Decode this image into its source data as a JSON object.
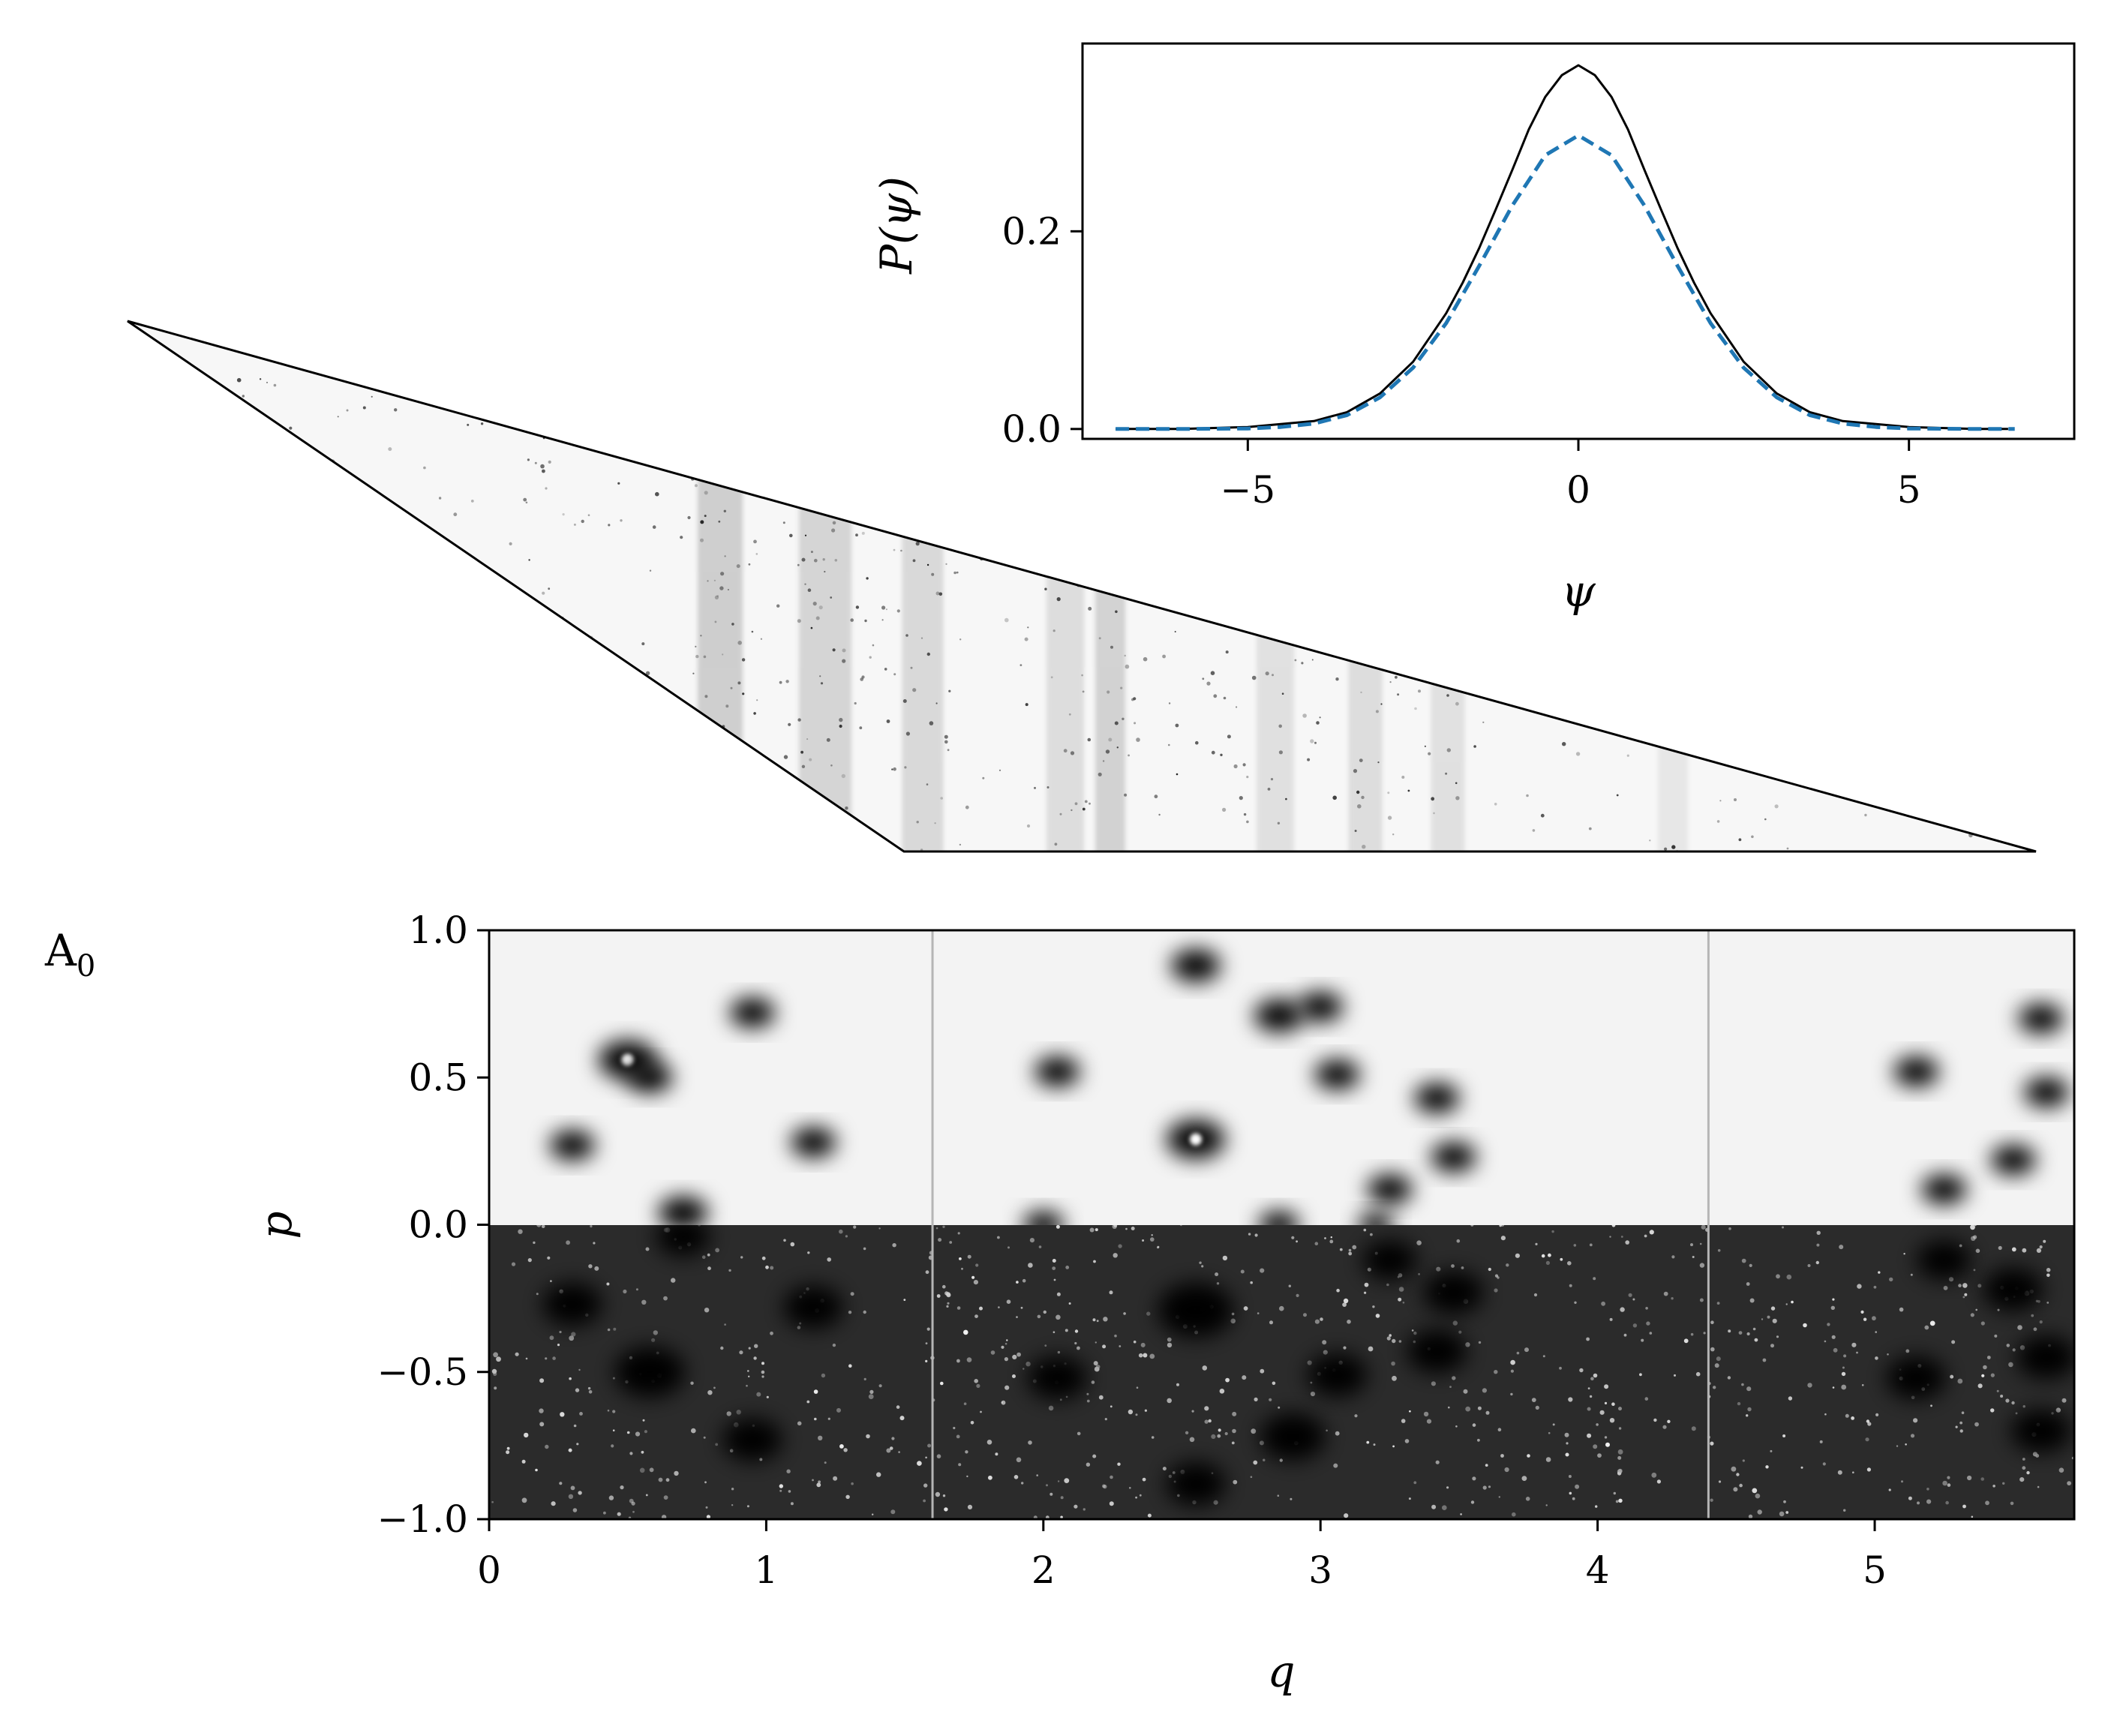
{
  "panel_label": {
    "main": "A",
    "sub": "0"
  },
  "chart_data": [
    {
      "type": "line",
      "xlabel": "ψ",
      "ylabel": "P(ψ)",
      "xlim": [
        -7.5,
        7.5
      ],
      "ylim": [
        -0.01,
        0.39
      ],
      "xticks": [
        -5,
        0,
        5
      ],
      "xtick_labels": [
        "−5",
        "0",
        "5"
      ],
      "yticks": [
        0.0,
        0.2
      ],
      "ytick_labels": [
        "0.0",
        "0.2"
      ],
      "grid": false,
      "series": [
        {
          "style": "solid",
          "color": "#000000",
          "x": [
            -7,
            -6,
            -5,
            -4,
            -3.5,
            -3,
            -2.5,
            -2,
            -1.75,
            -1.5,
            -1.25,
            -1,
            -0.75,
            -0.5,
            -0.25,
            0,
            0.25,
            0.5,
            0.75,
            1,
            1.25,
            1.5,
            1.75,
            2,
            2.5,
            3,
            3.5,
            4,
            5,
            6,
            6.5
          ],
          "y": [
            0.0,
            0.0,
            0.002,
            0.008,
            0.017,
            0.036,
            0.068,
            0.117,
            0.148,
            0.183,
            0.222,
            0.262,
            0.303,
            0.336,
            0.358,
            0.368,
            0.358,
            0.336,
            0.303,
            0.262,
            0.222,
            0.183,
            0.148,
            0.117,
            0.068,
            0.036,
            0.017,
            0.008,
            0.002,
            0.0,
            0.0
          ]
        },
        {
          "style": "dashed",
          "color": "#1f77b4",
          "x": [
            -7,
            -6,
            -5,
            -4.5,
            -4,
            -3.5,
            -3,
            -2.5,
            -2,
            -1.5,
            -1,
            -0.5,
            0,
            0.5,
            1,
            1.5,
            2,
            2.5,
            3,
            3.5,
            4,
            4.5,
            5,
            6,
            6.6
          ],
          "y": [
            0.0,
            0.0,
            0.0005,
            0.002,
            0.0055,
            0.014,
            0.032,
            0.062,
            0.107,
            0.165,
            0.226,
            0.277,
            0.297,
            0.277,
            0.226,
            0.165,
            0.107,
            0.062,
            0.032,
            0.014,
            0.0055,
            0.002,
            0.0005,
            0.0,
            0.0
          ]
        }
      ]
    },
    {
      "type": "heatmap",
      "xlabel": "q",
      "ylabel": "p",
      "xlim": [
        0,
        5.72
      ],
      "ylim": [
        -1.0,
        1.0
      ],
      "xticks": [
        0,
        1,
        2,
        3,
        4,
        5
      ],
      "xtick_labels": [
        "0",
        "1",
        "2",
        "3",
        "4",
        "5"
      ],
      "yticks": [
        1.0,
        0.5,
        0.0,
        -0.5,
        -1.0
      ],
      "ytick_labels": [
        "1.0",
        "0.5",
        "0.0",
        "−0.5",
        "−1.0"
      ],
      "separators_q": [
        1.6,
        4.4
      ],
      "upper_background": "#f3f3f3",
      "lower_background": "#2b2b2b",
      "spots_upper": [
        {
          "q": 0.5,
          "p": 0.56,
          "s": 1.3
        },
        {
          "q": 0.58,
          "p": 0.5,
          "s": 1.0
        },
        {
          "q": 0.95,
          "p": 0.72,
          "s": 1.0
        },
        {
          "q": 0.3,
          "p": 0.27,
          "s": 1.0
        },
        {
          "q": 1.17,
          "p": 0.28,
          "s": 1.0
        },
        {
          "q": 0.7,
          "p": 0.04,
          "s": 1.1
        },
        {
          "q": 2.05,
          "p": 0.52,
          "s": 1.0
        },
        {
          "q": 2.55,
          "p": 0.29,
          "s": 1.3
        },
        {
          "q": 2.55,
          "p": 0.88,
          "s": 1.1
        },
        {
          "q": 2.85,
          "p": 0.71,
          "s": 1.1
        },
        {
          "q": 3.0,
          "p": 0.74,
          "s": 1.0
        },
        {
          "q": 3.06,
          "p": 0.51,
          "s": 1.0
        },
        {
          "q": 3.42,
          "p": 0.43,
          "s": 1.0
        },
        {
          "q": 3.48,
          "p": 0.23,
          "s": 1.0
        },
        {
          "q": 3.25,
          "p": 0.12,
          "s": 1.0
        },
        {
          "q": 2.0,
          "p": 0.0,
          "s": 0.9
        },
        {
          "q": 2.85,
          "p": 0.0,
          "s": 0.9
        },
        {
          "q": 3.2,
          "p": 0.0,
          "s": 0.8
        },
        {
          "q": 5.15,
          "p": 0.52,
          "s": 1.0
        },
        {
          "q": 5.6,
          "p": 0.7,
          "s": 1.0
        },
        {
          "q": 5.62,
          "p": 0.45,
          "s": 1.0
        },
        {
          "q": 5.5,
          "p": 0.22,
          "s": 1.0
        },
        {
          "q": 5.25,
          "p": 0.12,
          "s": 1.0
        }
      ],
      "spots_lower": [
        {
          "q": 0.3,
          "p": -0.27,
          "s": 1.1
        },
        {
          "q": 1.17,
          "p": -0.28,
          "s": 1.1
        },
        {
          "q": 0.58,
          "p": -0.5,
          "s": 1.3
        },
        {
          "q": 0.95,
          "p": -0.73,
          "s": 1.1
        },
        {
          "q": 0.7,
          "p": -0.04,
          "s": 1.0
        },
        {
          "q": 2.05,
          "p": -0.52,
          "s": 1.1
        },
        {
          "q": 2.55,
          "p": -0.29,
          "s": 1.4
        },
        {
          "q": 2.55,
          "p": -0.88,
          "s": 1.1
        },
        {
          "q": 2.9,
          "p": -0.72,
          "s": 1.2
        },
        {
          "q": 3.06,
          "p": -0.51,
          "s": 1.1
        },
        {
          "q": 3.42,
          "p": -0.43,
          "s": 1.1
        },
        {
          "q": 3.48,
          "p": -0.23,
          "s": 1.1
        },
        {
          "q": 3.25,
          "p": -0.12,
          "s": 1.0
        },
        {
          "q": 5.15,
          "p": -0.52,
          "s": 1.1
        },
        {
          "q": 5.6,
          "p": -0.7,
          "s": 1.1
        },
        {
          "q": 5.62,
          "p": -0.45,
          "s": 1.1
        },
        {
          "q": 5.5,
          "p": -0.22,
          "s": 1.1
        },
        {
          "q": 5.25,
          "p": -0.12,
          "s": 1.0
        }
      ]
    }
  ]
}
